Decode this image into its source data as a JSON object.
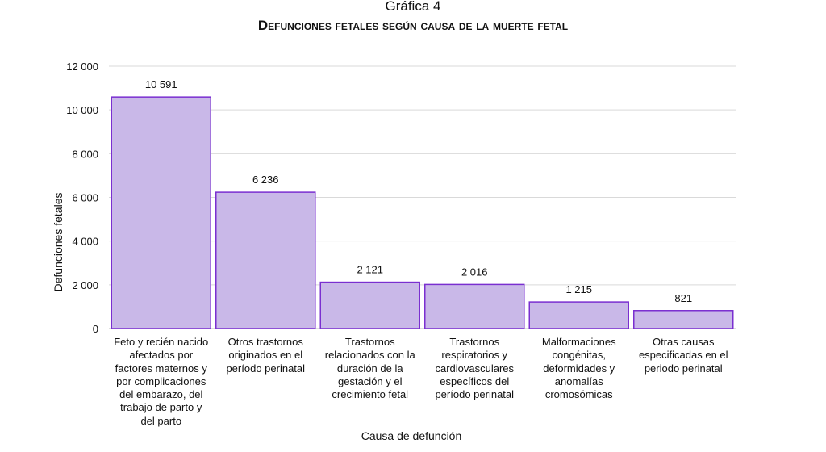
{
  "chart_data": {
    "type": "bar",
    "title": "Gráfica 4",
    "subtitle": "Defunciones fetales según causa de la muerte fetal",
    "xlabel": "Causa de defunción",
    "ylabel": "Defunciones fetales",
    "ylim": [
      0,
      12000
    ],
    "yticks": [
      0,
      2000,
      4000,
      6000,
      8000,
      10000,
      12000
    ],
    "ytick_labels": [
      "0",
      "2 000",
      "4 000",
      "6 000",
      "8 000",
      "10 000",
      "12 000"
    ],
    "grid": true,
    "categories": [
      "Feto y recién nacido\nafectados por\nfactores maternos y\npor complicaciones\ndel embarazo, del\ntrabajo de parto y\ndel parto",
      "Otros trastornos\noriginados en el\nperíodo perinatal",
      "Trastornos\nrelacionados con la\nduración de la\ngestación y el\ncrecimiento fetal",
      "Trastornos\nrespiratorios y\ncardiovasculares\nespecíficos del\nperíodo perinatal",
      "Malformaciones\ncongénitas,\ndeformidades y\nanomalías\ncromosómicas",
      "Otras causas\nespecificadas en el\nperiodo perinatal"
    ],
    "values": [
      10591,
      6236,
      2121,
      2016,
      1215,
      821
    ],
    "data_labels": [
      "10 591",
      "6 236",
      "2 121",
      "2 016",
      "1 215",
      "821"
    ],
    "colors": {
      "bar_fill": "#c9b8e8",
      "bar_stroke": "#7a2fd0",
      "grid": "#d9d9d9"
    }
  }
}
